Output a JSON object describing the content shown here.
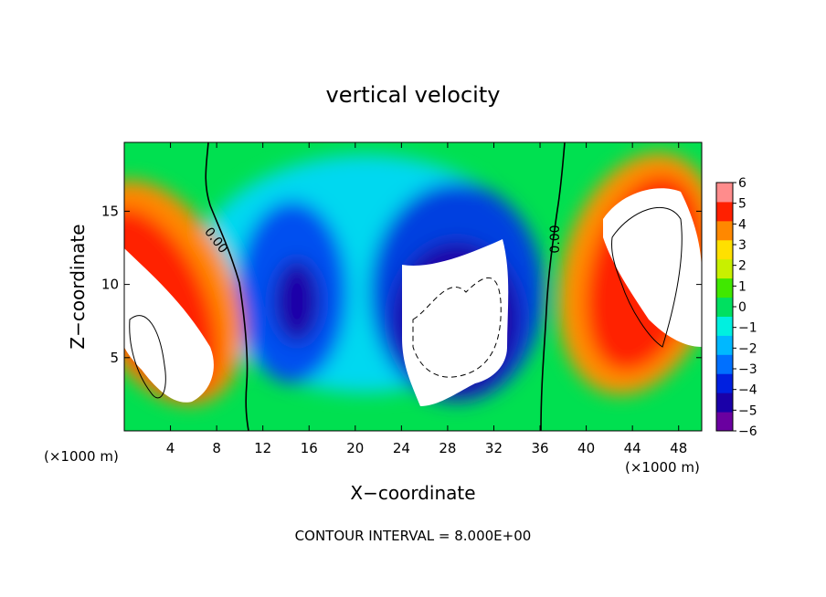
{
  "chart_data": {
    "type": "heatmap",
    "title": "vertical velocity",
    "xlabel": "X−coordinate",
    "ylabel": "Z−coordinate",
    "x_unit_label": "(×1000 m)",
    "x_ticks": [
      4,
      8,
      12,
      16,
      20,
      24,
      28,
      32,
      36,
      40,
      44,
      48
    ],
    "y_ticks": [
      5,
      10,
      15
    ],
    "xlim": [
      0,
      50
    ],
    "ylim": [
      0,
      19.7
    ],
    "colorbar": {
      "ticks": [
        6,
        5,
        4,
        3,
        2,
        1,
        0,
        -1,
        -2,
        -3,
        -4,
        -5,
        -6
      ],
      "tick_labels": [
        "6",
        "5",
        "4",
        "3",
        "2",
        "1",
        "0",
        "−1",
        "−2",
        "−3",
        "−4",
        "−5",
        "−6"
      ],
      "range": [
        -6,
        6
      ],
      "colors": [
        "#6a00a0",
        "#1a00a8",
        "#0020e0",
        "#0070ff",
        "#00b8ff",
        "#00f0e0",
        "#00e060",
        "#40e800",
        "#c8f000",
        "#ffe000",
        "#ff8800",
        "#ff2000",
        "#ff8c8c"
      ]
    },
    "contour_labels": [
      "0.00",
      "0.00"
    ],
    "contour_note": "CONTOUR INTERVAL = 8.000E+00",
    "features": [
      {
        "kind": "updraft",
        "x": 3.5,
        "z": 8,
        "value": 6
      },
      {
        "kind": "downdraft",
        "x": 14,
        "z": 8,
        "value": -5
      },
      {
        "kind": "downdraft",
        "x": 29,
        "z": 11,
        "value": -6
      },
      {
        "kind": "updraft",
        "x": 45,
        "z": 12,
        "value": 6
      }
    ]
  }
}
